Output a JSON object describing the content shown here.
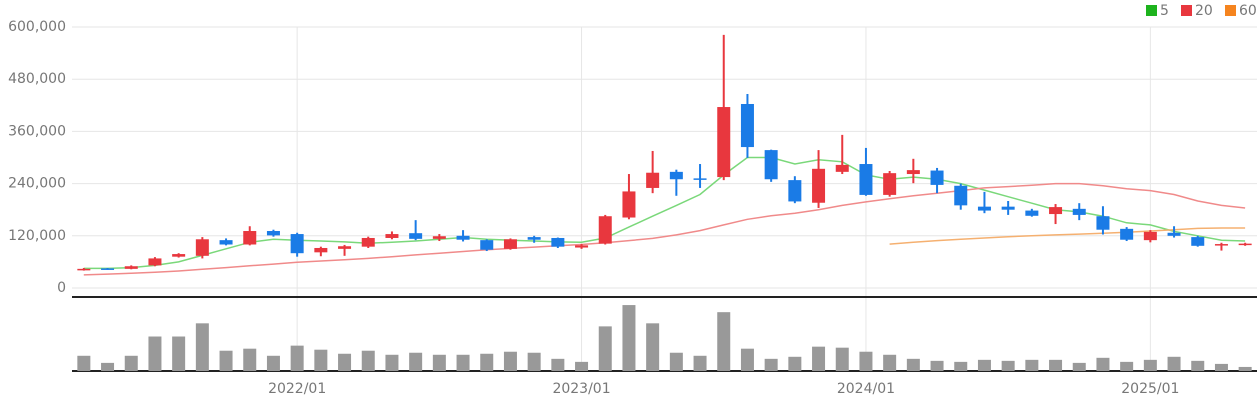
{
  "chart_data": {
    "type": "candlestick",
    "categories": [
      null,
      null,
      null,
      null,
      null,
      null,
      null,
      null,
      null,
      "2022/01",
      null,
      null,
      null,
      null,
      null,
      null,
      null,
      null,
      null,
      null,
      null,
      "2023/01",
      null,
      null,
      null,
      null,
      null,
      null,
      null,
      null,
      null,
      null,
      null,
      "2024/01",
      null,
      null,
      null,
      null,
      null,
      null,
      null,
      null,
      null,
      null,
      null,
      "2025/01",
      null,
      null,
      null,
      null
    ],
    "open": [
      41000,
      45000,
      44000,
      52000,
      72000,
      74000,
      110000,
      100000,
      131000,
      124000,
      82000,
      90000,
      95000,
      115000,
      126000,
      113000,
      120000,
      110000,
      90000,
      117000,
      115000,
      93000,
      102000,
      162000,
      230000,
      267000,
      252000,
      255000,
      423000,
      317000,
      248000,
      196000,
      267000,
      285000,
      214000,
      262000,
      270000,
      235000,
      187000,
      187000,
      178000,
      170000,
      182000,
      165000,
      136000,
      110000,
      127000,
      117000,
      100000,
      99000
    ],
    "high": [
      46000,
      46000,
      52000,
      71000,
      80000,
      117000,
      114000,
      142000,
      134000,
      127000,
      95000,
      99000,
      118000,
      130000,
      156000,
      124000,
      133000,
      112000,
      114000,
      120000,
      116000,
      101000,
      168000,
      262000,
      315000,
      272000,
      285000,
      582000,
      446000,
      318000,
      257000,
      317000,
      352000,
      322000,
      269000,
      297000,
      276000,
      240000,
      221000,
      200000,
      182000,
      193000,
      195000,
      188000,
      140000,
      133000,
      142000,
      120000,
      104000,
      104000
    ],
    "low": [
      40000,
      42000,
      43000,
      50000,
      70000,
      68000,
      98000,
      98000,
      118000,
      72000,
      73000,
      74000,
      92000,
      112000,
      110000,
      108000,
      107000,
      85000,
      88000,
      104000,
      92000,
      90000,
      100000,
      158000,
      218000,
      212000,
      230000,
      248000,
      299000,
      244000,
      195000,
      184000,
      262000,
      212000,
      210000,
      241000,
      218000,
      180000,
      172000,
      168000,
      164000,
      147000,
      156000,
      123000,
      108000,
      105000,
      116000,
      95000,
      86000,
      97000
    ],
    "close": [
      44000,
      43000,
      50000,
      68000,
      78000,
      112000,
      100000,
      131000,
      121000,
      80000,
      92000,
      96000,
      115000,
      124000,
      113000,
      119000,
      111000,
      88000,
      112000,
      111000,
      95000,
      98000,
      165000,
      222000,
      265000,
      250000,
      249000,
      416000,
      324000,
      250000,
      199000,
      274000,
      283000,
      214000,
      264000,
      271000,
      237000,
      190000,
      178000,
      180000,
      166000,
      186000,
      168000,
      134000,
      111000,
      129000,
      120000,
      97000,
      101000,
      102000
    ],
    "up_color": "#e8373e",
    "down_color": "#1a7be6",
    "series": [
      {
        "name": "5",
        "color": "#1db31d",
        "line_color": "#7ad87a",
        "values": [
          45000,
          45000,
          47000,
          52000,
          60000,
          75000,
          90000,
          105000,
          112000,
          110000,
          108000,
          106000,
          103000,
          105000,
          108000,
          112000,
          116000,
          112000,
          110000,
          108000,
          106000,
          105000,
          115000,
          140000,
          165000,
          190000,
          215000,
          260000,
          300000,
          300000,
          285000,
          295000,
          290000,
          260000,
          250000,
          255000,
          250000,
          240000,
          225000,
          210000,
          195000,
          180000,
          175000,
          165000,
          150000,
          145000,
          130000,
          120000,
          110000,
          108000
        ]
      },
      {
        "name": "20",
        "color": "#e8373e",
        "line_color": "#f08a8a",
        "values": [
          30000,
          32000,
          34000,
          36000,
          39000,
          43000,
          47000,
          51000,
          55000,
          59000,
          62000,
          65000,
          68000,
          72000,
          76000,
          80000,
          84000,
          88000,
          91000,
          94000,
          97000,
          100000,
          104000,
          109000,
          114000,
          122000,
          132000,
          145000,
          158000,
          166000,
          172000,
          180000,
          190000,
          198000,
          205000,
          212000,
          218000,
          224000,
          230000,
          233000,
          236000,
          240000,
          240000,
          235000,
          228000,
          224000,
          215000,
          200000,
          190000,
          184000
        ]
      },
      {
        "name": "60",
        "color": "#f5841f",
        "line_color": "#f5b070",
        "values": [
          null,
          null,
          null,
          null,
          null,
          null,
          null,
          null,
          null,
          null,
          null,
          null,
          null,
          null,
          null,
          null,
          null,
          null,
          null,
          null,
          null,
          null,
          null,
          null,
          null,
          null,
          null,
          null,
          null,
          null,
          null,
          null,
          null,
          null,
          101000,
          105000,
          109000,
          112000,
          115000,
          118000,
          120000,
          122000,
          124000,
          126000,
          128000,
          131000,
          134000,
          137000,
          138000,
          138000
        ]
      }
    ],
    "volume": {
      "color": "#999999",
      "vlim": [
        0,
        70
      ],
      "values": [
        15,
        8,
        15,
        34,
        34,
        47,
        20,
        22,
        15,
        25,
        21,
        17,
        20,
        16,
        18,
        16,
        16,
        17,
        19,
        18,
        12,
        9,
        44,
        65,
        47,
        18,
        15,
        58,
        22,
        12,
        14,
        24,
        23,
        19,
        16,
        12,
        10,
        9,
        11,
        10,
        11,
        11,
        8,
        13,
        9,
        11,
        14,
        10,
        7,
        4
      ]
    },
    "ylim": [
      0,
      600000
    ],
    "yticks": [
      0,
      {
        "value": 120000,
        "label": "120,000"
      },
      {
        "value": 240000,
        "label": "240,000"
      },
      {
        "value": 360000,
        "label": "360,000"
      },
      {
        "value": 480000,
        "label": "480,000"
      },
      {
        "value": 600000,
        "label": "600,000"
      }
    ],
    "grid": true,
    "legend": "top-right"
  }
}
